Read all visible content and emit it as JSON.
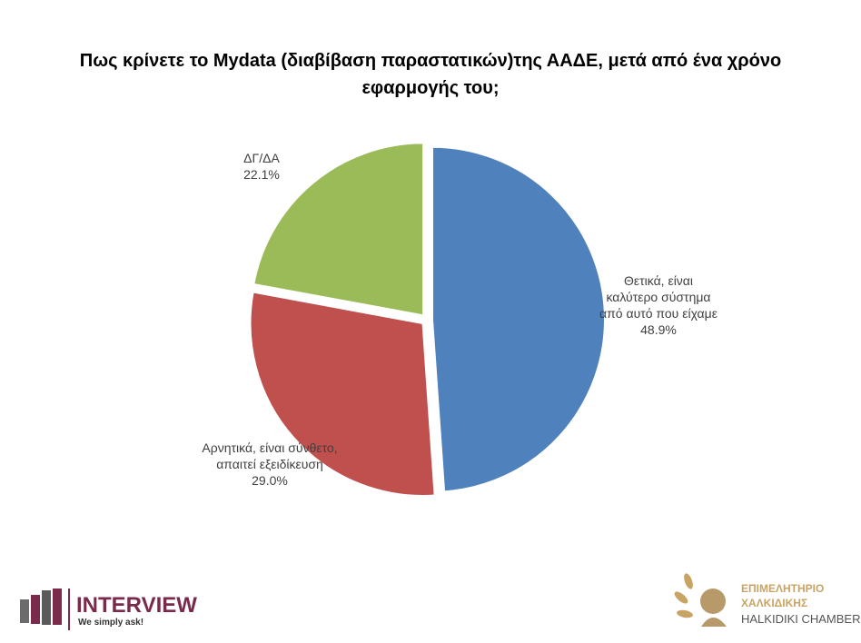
{
  "chart_data": {
    "type": "pie",
    "title": "Πως κρίνετε το Mydata (διαβίβαση παραστατικών)της ΑΑΔΕ, μετά από ένα χρόνο εφαρμογής του;",
    "categories": [
      "Θετικά, είναι καλύτερο σύστημα από αυτό που είχαμε",
      "Αρνητικά, είναι σύνθετο, απαιτεί εξειδίκευση",
      "ΔΓ/ΔΑ"
    ],
    "values": [
      48.9,
      29.0,
      22.1
    ],
    "value_labels": [
      "48.9%",
      "29.0%",
      "22.1%"
    ],
    "colors": [
      "#4f81bd",
      "#c0504d",
      "#9bbb59"
    ]
  },
  "footer": {
    "brand": "INTERVIEW",
    "slogan": "We simply ask!",
    "chamber_line1": "ΕΠΙΜΕΛΗΤΗΡΙΟ",
    "chamber_line2": "ΧΑΛΚΙΔΙΚΗΣ",
    "chamber_line3": "HALKIDIKI CHAMBER"
  }
}
